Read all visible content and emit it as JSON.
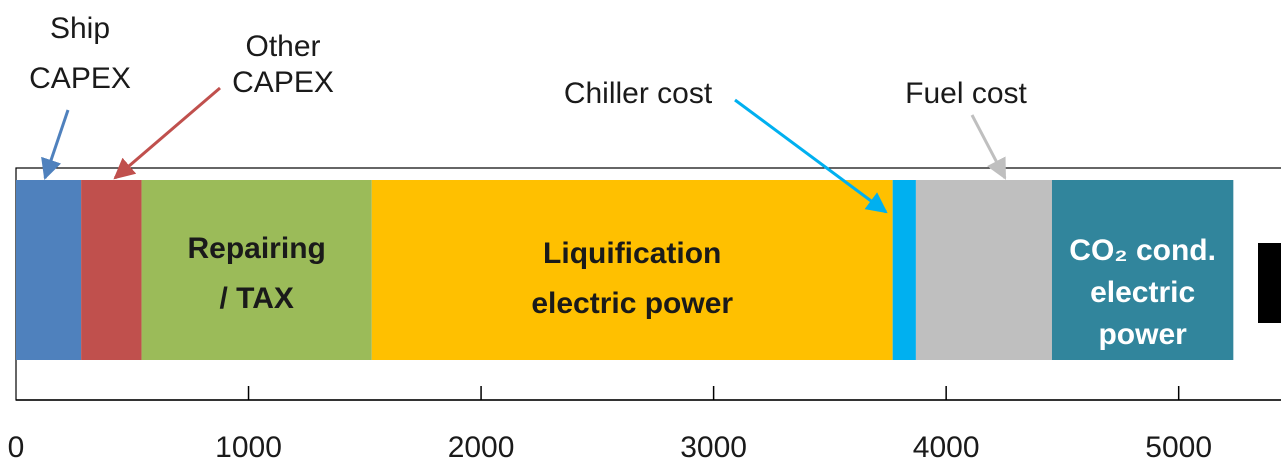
{
  "chart_data": {
    "type": "stacked_barh",
    "series": [
      {
        "name": "Ship\nCAPEX",
        "color": "#4f81bd",
        "values": [
          280
        ]
      },
      {
        "name": "Other\nCAPEX",
        "color": "#c0504d",
        "values": [
          260
        ]
      },
      {
        "name": "Repairing\n/ TAX",
        "color": "#9bbb59",
        "values": [
          990
        ]
      },
      {
        "name": "Liquification\nelectric power",
        "color": "#ffc000",
        "values": [
          2240
        ]
      },
      {
        "name": "Chiller cost",
        "color": "#00b0f0",
        "values": [
          100
        ]
      },
      {
        "name": "Fuel cost",
        "color": "#bfbfbf",
        "values": [
          585
        ]
      },
      {
        "name": "CO₂ cond.\nelectric\npower",
        "color": "#31859c",
        "values": [
          780
        ]
      }
    ],
    "xlim": [
      0,
      5440
    ],
    "xticks": [
      0,
      1000,
      2000,
      3000,
      4000,
      5000
    ]
  }
}
